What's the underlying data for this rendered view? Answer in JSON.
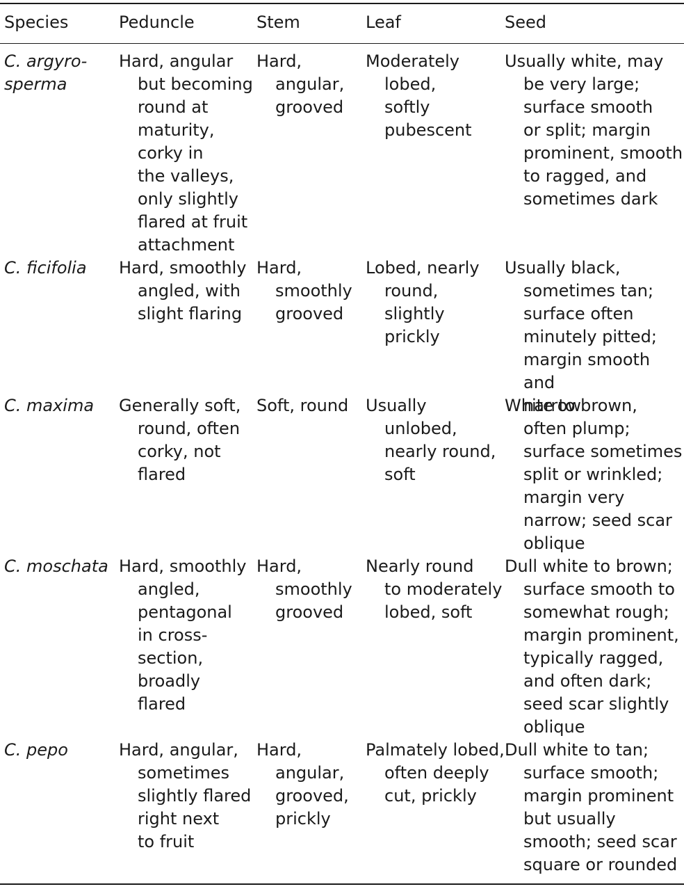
{
  "table": {
    "headers": [
      "Species",
      "Peduncle",
      "Stem",
      "Leaf",
      "Seed"
    ],
    "rows": [
      {
        "species": "C. argyro-\nsperma",
        "peduncle": "Hard, angular\nbut becoming\nround at\nmaturity,\ncorky in\nthe valleys,\nonly slightly\nflared at fruit\nattachment",
        "stem": "Hard,\nangular,\ngrooved",
        "leaf": "Moderately\nlobed,\nsoftly\npubescent",
        "seed": "Usually white, may\nbe very large;\nsurface smooth\nor split; margin\nprominent, smooth\nto ragged, and\nsometimes dark"
      },
      {
        "species": "C. ficifolia",
        "peduncle": "Hard, smoothly\nangled, with\nslight flaring",
        "stem": "Hard,\nsmoothly\ngrooved",
        "leaf": "Lobed, nearly\nround,\nslightly\nprickly",
        "seed": "Usually black,\nsometimes tan;\nsurface often\nminutely pitted;\nmargin smooth and\nnarrow"
      },
      {
        "species": "C. maxima",
        "peduncle": "Generally soft,\nround, often\ncorky, not\nflared",
        "stem": "Soft, round",
        "leaf": "Usually\nunlobed,\nnearly round,\nsoft",
        "seed": "White to brown,\noften plump;\nsurface sometimes\nsplit or wrinkled;\nmargin very\nnarrow; seed scar\noblique"
      },
      {
        "species": "C. moschata",
        "peduncle": "Hard, smoothly\nangled,\npentagonal\nin cross-\nsection,\nbroadly\nflared",
        "stem": "Hard,\nsmoothly\ngrooved",
        "leaf": "Nearly round\nto moderately\nlobed, soft",
        "seed": "Dull white to brown;\nsurface smooth to\nsomewhat rough;\nmargin prominent,\ntypically ragged,\nand often dark;\nseed scar slightly\noblique"
      },
      {
        "species": "C. pepo",
        "peduncle": "Hard, angular,\nsometimes\nslightly flared\nright next\nto fruit",
        "stem": "Hard,\nangular,\ngrooved,\nprickly",
        "leaf": "Palmately lobed,\noften deeply\ncut, prickly",
        "seed": "Dull white to tan;\nsurface smooth;\nmargin prominent\nbut usually\nsmooth; seed scar\nsquare or rounded"
      }
    ]
  }
}
